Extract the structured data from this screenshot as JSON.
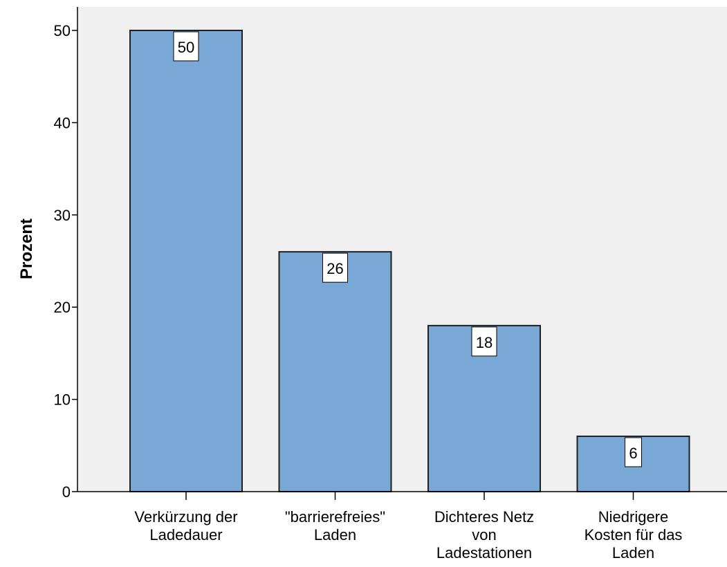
{
  "chart_data": {
    "type": "bar",
    "title": "",
    "xlabel": "",
    "ylabel": "Prozent",
    "ylim": [
      0,
      50
    ],
    "yticks": [
      0,
      10,
      20,
      30,
      40,
      50
    ],
    "grid": false,
    "legend": "none",
    "categories": [
      [
        "Verkürzung der",
        "Ladedauer"
      ],
      [
        "\"barrierefreies\"",
        "Laden"
      ],
      [
        "Dichteres Netz",
        "von",
        "Ladestationen"
      ],
      [
        "Niedrigere",
        "Kosten für das",
        "Laden"
      ]
    ],
    "values": [
      50,
      26,
      18,
      6
    ],
    "data_labels": [
      "50",
      "26",
      "18",
      "6"
    ],
    "colors": {
      "bar_fill": "#79a8d6",
      "bar_stroke": "#1f1f1f",
      "plot_background": "#f0f0f0",
      "axis": "#000000"
    }
  }
}
